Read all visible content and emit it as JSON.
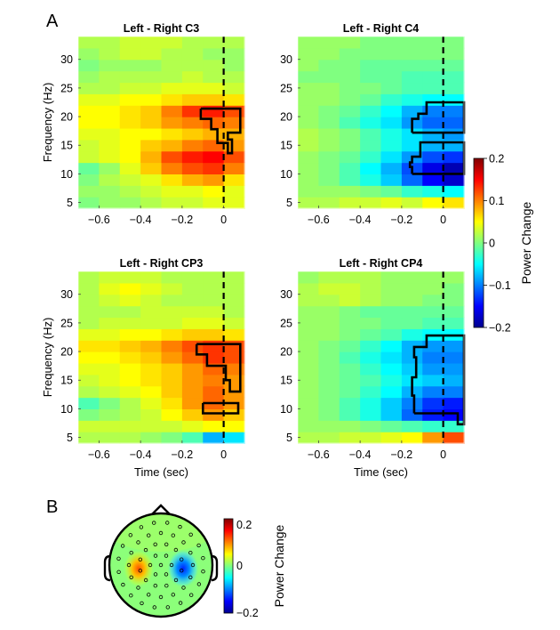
{
  "panel_a_label": "A",
  "panel_b_label": "B",
  "chart_data": [
    {
      "type": "heatmap",
      "title": "Left - Right C3",
      "channel": "C3",
      "xlabel": "",
      "ylabel": "Frequency (Hz)",
      "xlim": [
        -0.7,
        0.1
      ],
      "ylim": [
        4,
        34
      ],
      "xticks": [
        -0.6,
        -0.4,
        -0.2,
        0
      ],
      "xtick_labels": [
        "−0.6",
        "−0.4",
        "−0.2",
        "0"
      ],
      "yticks": [
        5,
        10,
        15,
        20,
        25,
        30
      ],
      "yticks_labels": [
        "5",
        "10",
        "15",
        "20",
        "25",
        "30"
      ],
      "event_line_x": 0,
      "rows_hz": [
        5,
        7,
        9,
        11,
        13,
        15,
        17,
        19,
        21,
        23,
        25,
        27,
        29,
        31,
        33
      ],
      "cols_sec": [
        -0.65,
        -0.55,
        -0.45,
        -0.35,
        -0.25,
        -0.15,
        -0.05,
        0.05
      ],
      "values": [
        [
          0.0,
          0.01,
          0.01,
          0.02,
          0.03,
          0.03,
          0.04,
          0.04
        ],
        [
          0.01,
          0.01,
          0.02,
          0.03,
          0.04,
          0.04,
          0.05,
          0.04
        ],
        [
          0.0,
          0.02,
          0.03,
          0.04,
          0.06,
          0.08,
          0.09,
          0.06
        ],
        [
          -0.01,
          0.01,
          0.04,
          0.07,
          0.1,
          0.12,
          0.13,
          0.1
        ],
        [
          0.03,
          0.04,
          0.05,
          0.08,
          0.12,
          0.14,
          0.15,
          0.12
        ],
        [
          0.03,
          0.04,
          0.05,
          0.07,
          0.08,
          0.1,
          0.11,
          0.09
        ],
        [
          0.04,
          0.04,
          0.05,
          0.05,
          0.06,
          0.07,
          0.08,
          0.08
        ],
        [
          0.05,
          0.05,
          0.06,
          0.07,
          0.09,
          0.1,
          0.11,
          0.1
        ],
        [
          0.05,
          0.05,
          0.06,
          0.07,
          0.1,
          0.13,
          0.14,
          0.12
        ],
        [
          0.04,
          0.04,
          0.05,
          0.05,
          0.06,
          0.07,
          0.07,
          0.06
        ],
        [
          0.02,
          0.02,
          0.03,
          0.03,
          0.04,
          0.04,
          0.04,
          0.03
        ],
        [
          0.01,
          0.02,
          0.02,
          0.02,
          0.02,
          0.03,
          0.02,
          0.02
        ],
        [
          0.0,
          0.01,
          0.01,
          0.01,
          0.02,
          0.02,
          0.02,
          0.01
        ],
        [
          0.01,
          0.02,
          0.03,
          0.03,
          0.02,
          0.02,
          0.01,
          0.01
        ],
        [
          0.02,
          0.02,
          0.03,
          0.03,
          0.03,
          0.02,
          0.02,
          0.02
        ]
      ],
      "significance_outlines_hz_sec": [
        [
          [
            -0.11,
            21.4
          ],
          [
            0.08,
            21.4
          ],
          [
            0.08,
            17.2
          ],
          [
            0.02,
            17.2
          ],
          [
            0.02,
            16.0
          ],
          [
            0.04,
            16.0
          ],
          [
            0.04,
            13.6
          ],
          [
            0.02,
            13.6
          ],
          [
            0.02,
            15.4
          ],
          [
            -0.03,
            15.4
          ],
          [
            -0.03,
            17.8
          ],
          [
            -0.06,
            17.8
          ],
          [
            -0.06,
            19.6
          ],
          [
            -0.11,
            19.6
          ],
          [
            -0.11,
            21.4
          ]
        ]
      ]
    },
    {
      "type": "heatmap",
      "title": "Left - Right C4",
      "channel": "C4",
      "xlabel": "",
      "ylabel": "",
      "xlim": [
        -0.7,
        0.1
      ],
      "ylim": [
        4,
        34
      ],
      "xticks": [
        -0.6,
        -0.4,
        -0.2,
        0
      ],
      "xtick_labels": [
        "−0.6",
        "−0.4",
        "−0.2",
        "0"
      ],
      "yticks": [
        5,
        10,
        15,
        20,
        25,
        30
      ],
      "yticks_labels": [
        "5",
        "10",
        "15",
        "20",
        "25",
        "30"
      ],
      "event_line_x": 0,
      "rows_hz": [
        5,
        7,
        9,
        11,
        13,
        15,
        17,
        19,
        21,
        23,
        25,
        27,
        29,
        31,
        33
      ],
      "cols_sec": [
        -0.65,
        -0.55,
        -0.45,
        -0.35,
        -0.25,
        -0.15,
        -0.05,
        0.05
      ],
      "values": [
        [
          0.02,
          0.02,
          0.03,
          0.03,
          0.04,
          0.03,
          0.05,
          0.06
        ],
        [
          0.01,
          0.01,
          0.01,
          0.0,
          -0.01,
          -0.03,
          -0.04,
          -0.05
        ],
        [
          0.01,
          0.0,
          -0.02,
          -0.04,
          -0.07,
          -0.11,
          -0.15,
          -0.17
        ],
        [
          0.01,
          0.0,
          -0.02,
          -0.05,
          -0.08,
          -0.12,
          -0.16,
          -0.18
        ],
        [
          0.01,
          0.0,
          -0.01,
          -0.03,
          -0.06,
          -0.09,
          -0.12,
          -0.13
        ],
        [
          0.02,
          0.01,
          0.0,
          -0.02,
          -0.04,
          -0.06,
          -0.08,
          -0.08
        ],
        [
          0.02,
          0.01,
          0.0,
          -0.02,
          -0.04,
          -0.06,
          -0.08,
          -0.09
        ],
        [
          0.01,
          0.0,
          -0.02,
          -0.04,
          -0.06,
          -0.09,
          -0.11,
          -0.11
        ],
        [
          0.01,
          0.0,
          -0.01,
          -0.03,
          -0.05,
          -0.08,
          -0.1,
          -0.1
        ],
        [
          0.01,
          0.01,
          0.0,
          -0.01,
          -0.03,
          -0.04,
          -0.05,
          -0.05
        ],
        [
          0.01,
          0.01,
          0.0,
          0.0,
          -0.01,
          -0.02,
          -0.02,
          -0.02
        ],
        [
          0.0,
          0.0,
          0.0,
          -0.01,
          -0.01,
          -0.02,
          -0.02,
          -0.02
        ],
        [
          0.01,
          0.0,
          0.0,
          -0.01,
          -0.01,
          -0.01,
          -0.01,
          -0.01
        ],
        [
          0.01,
          0.01,
          0.0,
          0.0,
          0.0,
          0.0,
          0.0,
          0.0
        ],
        [
          0.01,
          0.01,
          0.01,
          0.0,
          0.0,
          0.0,
          0.0,
          0.0
        ]
      ],
      "significance_outlines_hz_sec": [
        [
          [
            -0.15,
            10.0
          ],
          [
            0.1,
            10.0
          ],
          [
            0.1,
            15.5
          ],
          [
            -0.11,
            15.5
          ],
          [
            -0.11,
            13.0
          ],
          [
            -0.15,
            13.0
          ],
          [
            -0.15,
            12.0
          ],
          [
            -0.16,
            12.0
          ],
          [
            -0.16,
            11.2
          ],
          [
            -0.15,
            11.2
          ],
          [
            -0.15,
            10.0
          ]
        ],
        [
          [
            -0.15,
            17.2
          ],
          [
            0.1,
            17.2
          ],
          [
            0.1,
            22.5
          ],
          [
            -0.08,
            22.5
          ],
          [
            -0.08,
            20.5
          ],
          [
            -0.12,
            20.5
          ],
          [
            -0.12,
            19.6
          ],
          [
            -0.15,
            19.6
          ],
          [
            -0.15,
            17.2
          ]
        ]
      ]
    },
    {
      "type": "heatmap",
      "title": "Left - Right CP3",
      "channel": "CP3",
      "xlabel": "Time (sec)",
      "ylabel": "Frequency (Hz)",
      "xlim": [
        -0.7,
        0.1
      ],
      "ylim": [
        4,
        34
      ],
      "xticks": [
        -0.6,
        -0.4,
        -0.2,
        0
      ],
      "xtick_labels": [
        "−0.6",
        "−0.4",
        "−0.2",
        "0"
      ],
      "yticks": [
        5,
        10,
        15,
        20,
        25,
        30
      ],
      "yticks_labels": [
        "5",
        "10",
        "15",
        "20",
        "25",
        "30"
      ],
      "event_line_x": 0,
      "rows_hz": [
        5,
        7,
        9,
        11,
        13,
        15,
        17,
        19,
        21,
        23,
        25,
        27,
        29,
        31,
        33
      ],
      "cols_sec": [
        -0.65,
        -0.55,
        -0.45,
        -0.35,
        -0.25,
        -0.15,
        -0.05,
        0.05
      ],
      "values": [
        [
          0.02,
          0.02,
          0.02,
          0.01,
          0.0,
          -0.02,
          -0.08,
          -0.06
        ],
        [
          0.03,
          0.03,
          0.03,
          0.03,
          0.03,
          0.04,
          0.05,
          0.05
        ],
        [
          0.0,
          0.01,
          0.02,
          0.03,
          0.05,
          0.07,
          0.09,
          0.07
        ],
        [
          -0.02,
          0.0,
          0.02,
          0.04,
          0.06,
          0.09,
          0.11,
          0.09
        ],
        [
          0.02,
          0.03,
          0.04,
          0.05,
          0.07,
          0.09,
          0.11,
          0.09
        ],
        [
          0.03,
          0.04,
          0.05,
          0.06,
          0.07,
          0.09,
          0.1,
          0.09
        ],
        [
          0.04,
          0.04,
          0.05,
          0.06,
          0.07,
          0.09,
          0.11,
          0.1
        ],
        [
          0.05,
          0.05,
          0.06,
          0.07,
          0.09,
          0.11,
          0.13,
          0.12
        ],
        [
          0.06,
          0.06,
          0.07,
          0.08,
          0.1,
          0.12,
          0.13,
          0.12
        ],
        [
          0.04,
          0.04,
          0.05,
          0.05,
          0.06,
          0.07,
          0.07,
          0.06
        ],
        [
          0.02,
          0.03,
          0.03,
          0.03,
          0.03,
          0.04,
          0.04,
          0.03
        ],
        [
          0.02,
          0.02,
          0.02,
          0.03,
          0.03,
          0.03,
          0.03,
          0.02
        ],
        [
          0.02,
          0.03,
          0.04,
          0.03,
          0.02,
          0.02,
          0.02,
          0.02
        ],
        [
          0.02,
          0.04,
          0.05,
          0.04,
          0.03,
          0.02,
          0.02,
          0.02
        ],
        [
          0.02,
          0.03,
          0.03,
          0.03,
          0.02,
          0.02,
          0.02,
          0.02
        ]
      ],
      "significance_outlines_hz_sec": [
        [
          [
            -0.1,
            11.0
          ],
          [
            0.07,
            11.0
          ],
          [
            0.07,
            9.2
          ],
          [
            -0.1,
            9.2
          ],
          [
            -0.1,
            11.0
          ]
        ],
        [
          [
            -0.13,
            21.3
          ],
          [
            0.08,
            21.3
          ],
          [
            0.08,
            13.0
          ],
          [
            0.03,
            13.0
          ],
          [
            0.03,
            15.0
          ],
          [
            0.01,
            15.0
          ],
          [
            0.01,
            17.5
          ],
          [
            -0.08,
            17.5
          ],
          [
            -0.08,
            19.5
          ],
          [
            -0.13,
            19.5
          ],
          [
            -0.13,
            21.3
          ]
        ]
      ]
    },
    {
      "type": "heatmap",
      "title": "Left - Right CP4",
      "channel": "CP4",
      "xlabel": "Time (sec)",
      "ylabel": "",
      "xlim": [
        -0.7,
        0.1
      ],
      "ylim": [
        4,
        34
      ],
      "xticks": [
        -0.6,
        -0.4,
        -0.2,
        0
      ],
      "xtick_labels": [
        "−0.6",
        "−0.4",
        "−0.2",
        "0"
      ],
      "yticks": [
        5,
        10,
        15,
        20,
        25,
        30
      ],
      "yticks_labels": [
        "5",
        "10",
        "15",
        "20",
        "25",
        "30"
      ],
      "event_line_x": 0,
      "rows_hz": [
        5,
        7,
        9,
        11,
        13,
        15,
        17,
        19,
        21,
        23,
        25,
        27,
        29,
        31,
        33
      ],
      "cols_sec": [
        -0.65,
        -0.55,
        -0.45,
        -0.35,
        -0.25,
        -0.15,
        -0.05,
        0.05
      ],
      "values": [
        [
          0.02,
          0.02,
          0.03,
          0.03,
          0.04,
          0.05,
          0.09,
          0.12
        ],
        [
          0.01,
          0.01,
          0.01,
          0.0,
          -0.01,
          -0.02,
          -0.03,
          -0.03
        ],
        [
          0.01,
          0.0,
          -0.02,
          -0.04,
          -0.07,
          -0.11,
          -0.14,
          -0.15
        ],
        [
          0.01,
          0.0,
          -0.02,
          -0.04,
          -0.07,
          -0.1,
          -0.13,
          -0.14
        ],
        [
          0.01,
          0.0,
          -0.01,
          -0.03,
          -0.05,
          -0.08,
          -0.1,
          -0.1
        ],
        [
          0.01,
          0.0,
          -0.01,
          -0.02,
          -0.04,
          -0.06,
          -0.07,
          -0.08
        ],
        [
          0.01,
          0.0,
          -0.01,
          -0.03,
          -0.05,
          -0.07,
          -0.09,
          -0.09
        ],
        [
          0.01,
          0.0,
          -0.02,
          -0.04,
          -0.06,
          -0.08,
          -0.1,
          -0.1
        ],
        [
          0.01,
          0.0,
          -0.01,
          -0.03,
          -0.05,
          -0.08,
          -0.09,
          -0.09
        ],
        [
          0.01,
          0.01,
          0.0,
          -0.01,
          -0.02,
          -0.04,
          -0.05,
          -0.05
        ],
        [
          0.01,
          0.01,
          0.0,
          0.0,
          -0.01,
          -0.01,
          -0.02,
          -0.02
        ],
        [
          0.01,
          0.01,
          0.0,
          -0.01,
          -0.01,
          -0.01,
          -0.01,
          -0.01
        ],
        [
          0.02,
          0.02,
          0.03,
          0.02,
          0.01,
          0.01,
          0.0,
          0.0
        ],
        [
          0.02,
          0.03,
          0.03,
          0.02,
          0.01,
          0.01,
          0.01,
          0.0
        ],
        [
          0.01,
          0.02,
          0.02,
          0.02,
          0.01,
          0.01,
          0.01,
          0.01
        ]
      ],
      "significance_outlines_hz_sec": [
        [
          [
            -0.14,
            9.2
          ],
          [
            0.07,
            9.2
          ],
          [
            0.07,
            7.3
          ],
          [
            0.1,
            7.3
          ],
          [
            0.1,
            22.8
          ],
          [
            -0.08,
            22.8
          ],
          [
            -0.08,
            20.8
          ],
          [
            -0.14,
            20.8
          ],
          [
            -0.14,
            19.0
          ],
          [
            -0.13,
            19.0
          ],
          [
            -0.13,
            15.5
          ],
          [
            -0.15,
            15.5
          ],
          [
            -0.15,
            12.3
          ],
          [
            -0.14,
            12.3
          ],
          [
            -0.14,
            9.2
          ]
        ]
      ]
    },
    {
      "type": "colorbar",
      "label": "Power Change",
      "range": [
        -0.2,
        0.2
      ],
      "ticks": [
        0.2,
        0.1,
        0,
        -0.1,
        -0.2
      ],
      "tick_labels": [
        "0.2",
        "0.1",
        "0",
        "−0.1",
        "−0.2"
      ],
      "colormap": "jet"
    },
    {
      "type": "topoplot",
      "label": "Power Change",
      "range": [
        -0.2,
        0.2
      ],
      "tick_labels": [
        "0.2",
        "0",
        "−0.2"
      ],
      "colormap": "jet",
      "foci": [
        {
          "channel": "C3",
          "value": 0.1
        },
        {
          "channel": "C4",
          "value": -0.11
        }
      ]
    }
  ]
}
